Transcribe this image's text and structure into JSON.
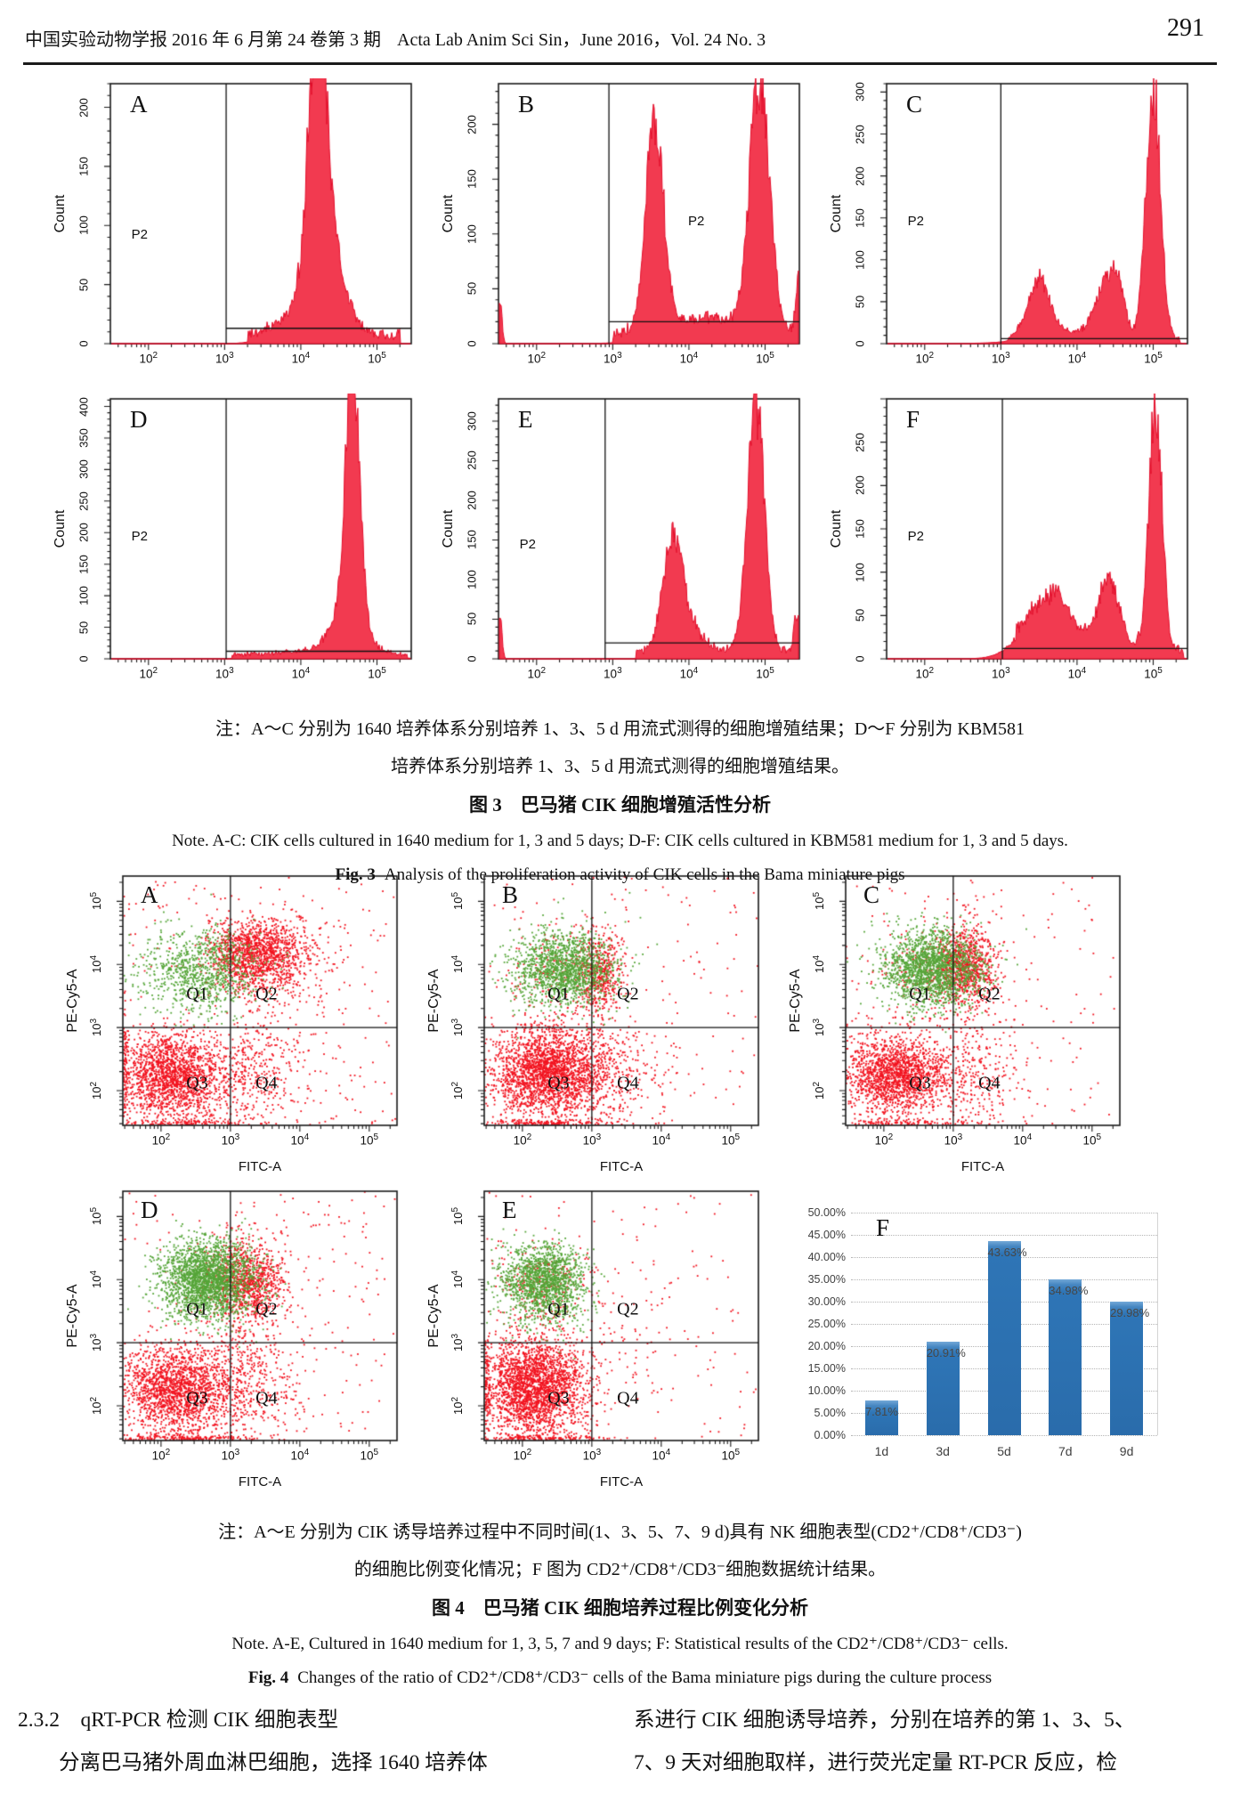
{
  "header": {
    "journal_cn": "中国实验动物学报 2016 年 6 月第 24 卷第 3 期",
    "journal_en": "Acta Lab Anim Sci Sin，June 2016，Vol. 24 No. 3",
    "page_number": "291"
  },
  "fig3": {
    "note_line1": "注：A～C 分别为 1640 培养体系分别培养 1、3、5 d 用流式测得的细胞增殖结果；D～F 分别为 KBM581",
    "note_line2": "培养体系分别培养 1、3、5 d 用流式测得的细胞增殖结果。",
    "title_cn": "图 3　巴马猪 CIK 细胞增殖活性分析",
    "note_en": "Note. A-C: CIK cells cultured in 1640 medium for 1, 3 and 5 days; D-F: CIK cells cultured in KBM581 medium for 1, 3 and 5 days.",
    "title_en_prefix": "Fig. 3",
    "title_en_rest": "Analysis of the proliferation activity of CIK cells in the Bama miniature pigs"
  },
  "fig4": {
    "note_line1": "注：A～E 分别为 CIK 诱导培养过程中不同时间(1、3、5、7、9 d)具有 NK 细胞表型(CD2⁺/CD8⁺/CD3⁻)",
    "note_line2": "的细胞比例变化情况；F 图为 CD2⁺/CD8⁺/CD3⁻细胞数据统计结果。",
    "title_cn": "图 4　巴马猪 CIK 细胞培养过程比例变化分析",
    "note_en": "Note. A-E, Cultured in 1640 medium for 1, 3, 5, 7 and 9 days; F: Statistical results of the CD2⁺/CD8⁺/CD3⁻ cells.",
    "title_en_prefix": "Fig. 4",
    "title_en_rest": "Changes of the ratio of CD2⁺/CD8⁺/CD3⁻ cells of the Bama miniature pigs during the culture process"
  },
  "body": {
    "section_heading": "2.3.2　qRT-PCR 检测 CIK 细胞表型",
    "left_line": "分离巴马猪外周血淋巴细胞，选择 1640 培养体",
    "right_line1": "系进行 CIK 细胞诱导培养，分别在培养的第 1、3、5、",
    "right_line2": "7、9 天对细胞取样，进行荧光定量 RT-PCR 反应，检"
  },
  "chart_data": [
    {
      "id": "fig3_histograms",
      "type": "histogram",
      "ylabel": "Count",
      "gate_label": "P2",
      "xlog_range": [
        1.5,
        5.45
      ],
      "xtick_exponents": [
        2,
        3,
        4,
        5
      ],
      "fill_color": "#f23a50",
      "line_color": "#e30b28",
      "panels": [
        {
          "label": "A",
          "ymax": 220,
          "yticks": [
            0,
            50,
            100,
            150,
            200
          ],
          "gate_x": 3.02,
          "gate_y": 13,
          "p2_pos": [
            0.07,
            0.55
          ],
          "peaks": [
            [
              4.22,
              0.11,
              200
            ],
            [
              4.32,
              0.2,
              70
            ],
            [
              4.15,
              0.35,
              25
            ]
          ],
          "floor": [
            3.3,
            5.3,
            8
          ]
        },
        {
          "label": "B",
          "ymax": 237,
          "yticks": [
            0,
            50,
            100,
            150,
            200
          ],
          "gate_x": 2.95,
          "gate_y": 20,
          "p2_pos": [
            0.63,
            0.5
          ],
          "peaks": [
            [
              3.55,
              0.115,
              188
            ],
            [
              4.93,
              0.13,
              228
            ],
            [
              4.2,
              0.5,
              15
            ],
            [
              1.52,
              0.025,
              40
            ],
            [
              5.45,
              0.04,
              60
            ]
          ],
          "floor": [
            3.0,
            5.45,
            10
          ]
        },
        {
          "label": "C",
          "ymax": 310,
          "yticks": [
            0,
            50,
            100,
            150,
            200,
            250,
            300
          ],
          "gate_x": 3.0,
          "gate_y": 6,
          "p2_pos": [
            0.07,
            0.5
          ],
          "peaks": [
            [
              3.5,
              0.14,
              68
            ],
            [
              4.38,
              0.13,
              62
            ],
            [
              4.55,
              0.08,
              45
            ],
            [
              5.0,
              0.095,
              300
            ],
            [
              4.0,
              0.55,
              10
            ]
          ],
          "floor": [
            3.1,
            5.35,
            5
          ]
        },
        {
          "label": "D",
          "ymax": 412,
          "yticks": [
            0,
            50,
            100,
            150,
            200,
            250,
            300,
            350,
            400
          ],
          "gate_x": 3.02,
          "gate_y": 12,
          "p2_pos": [
            0.07,
            0.5
          ],
          "peaks": [
            [
              4.68,
              0.09,
              400
            ],
            [
              4.62,
              0.2,
              70
            ],
            [
              4.4,
              0.5,
              8
            ]
          ],
          "floor": [
            3.1,
            5.4,
            7
          ]
        },
        {
          "label": "E",
          "ymax": 328,
          "yticks": [
            0,
            50,
            100,
            150,
            200,
            250,
            300
          ],
          "gate_x": 2.9,
          "gate_y": 20,
          "p2_pos": [
            0.07,
            0.53
          ],
          "peaks": [
            [
              3.78,
              0.12,
              126
            ],
            [
              3.95,
              0.2,
              35
            ],
            [
              4.88,
              0.11,
              315
            ],
            [
              1.52,
              0.025,
              55
            ],
            [
              5.42,
              0.04,
              55
            ]
          ],
          "floor": [
            3.3,
            5.4,
            11
          ]
        },
        {
          "label": "F",
          "ymax": 300,
          "yticks": [
            0,
            50,
            100,
            150,
            200,
            250
          ],
          "gate_x": 3.02,
          "gate_y": 12,
          "p2_pos": [
            0.07,
            0.5
          ],
          "peaks": [
            [
              3.55,
              0.28,
              48
            ],
            [
              3.75,
              0.1,
              20
            ],
            [
              4.42,
              0.13,
              70
            ],
            [
              5.03,
              0.085,
              288
            ],
            [
              4.1,
              0.5,
              15
            ]
          ],
          "floor": [
            3.2,
            5.4,
            10
          ]
        }
      ]
    },
    {
      "id": "fig4_scatter",
      "type": "scatter",
      "xlabel": "FITC-A",
      "ylabel": "PE-Cy5-A",
      "log_range": [
        1.45,
        5.4
      ],
      "tick_exponents": [
        2,
        3,
        4,
        5
      ],
      "quadrant_cross": [
        3.0,
        3.0
      ],
      "quadrant_labels": [
        "Q1",
        "Q2",
        "Q3",
        "Q4"
      ],
      "quadrant_label_pos": [
        [
          2.52,
          3.52
        ],
        [
          3.52,
          3.52
        ],
        [
          2.52,
          2.12
        ],
        [
          3.52,
          2.12
        ]
      ],
      "colors": {
        "red": "#f2131f",
        "green": "#55a538"
      },
      "panels": [
        {
          "label": "A",
          "clusters": [
            {
              "color": "red",
              "x": 3.35,
              "y": 4.15,
              "sx": 0.33,
              "sy": 0.27,
              "n": 1300
            },
            {
              "color": "red",
              "x": 3.85,
              "y": 3.95,
              "sx": 0.5,
              "sy": 0.5,
              "n": 220
            },
            {
              "color": "red",
              "x": 2.15,
              "y": 2.25,
              "sx": 0.36,
              "sy": 0.32,
              "n": 1700
            },
            {
              "color": "red",
              "x": 3.3,
              "y": 2.2,
              "sx": 0.45,
              "sy": 0.5,
              "n": 470
            },
            {
              "color": "red",
              "x": 1.48,
              "y": 2.3,
              "sx": 0.03,
              "sy": 0.4,
              "n": 150
            },
            {
              "color": "red",
              "x": 2.3,
              "y": 1.48,
              "sx": 0.55,
              "sy": 0.03,
              "n": 150
            },
            {
              "color": "red",
              "uniform": true,
              "n": 240
            },
            {
              "color": "green",
              "x": 2.55,
              "y": 3.9,
              "sx": 0.42,
              "sy": 0.33,
              "n": 900
            }
          ]
        },
        {
          "label": "B",
          "clusters": [
            {
              "color": "red",
              "x": 2.35,
              "y": 2.3,
              "sx": 0.4,
              "sy": 0.36,
              "n": 2300
            },
            {
              "color": "red",
              "x": 3.12,
              "y": 3.85,
              "sx": 0.16,
              "sy": 0.35,
              "n": 470
            },
            {
              "color": "red",
              "x": 3.25,
              "y": 2.3,
              "sx": 0.4,
              "sy": 0.45,
              "n": 330
            },
            {
              "color": "red",
              "x": 2.6,
              "y": 3.9,
              "sx": 0.4,
              "sy": 0.3,
              "n": 160
            },
            {
              "color": "red",
              "x": 2.3,
              "y": 1.48,
              "sx": 0.55,
              "sy": 0.03,
              "n": 200
            },
            {
              "color": "red",
              "uniform": true,
              "n": 180
            },
            {
              "color": "green",
              "x": 2.6,
              "y": 3.93,
              "sx": 0.36,
              "sy": 0.3,
              "n": 1500
            }
          ]
        },
        {
          "label": "C",
          "clusters": [
            {
              "color": "red",
              "x": 3.18,
              "y": 3.95,
              "sx": 0.22,
              "sy": 0.33,
              "n": 900
            },
            {
              "color": "red",
              "x": 2.15,
              "y": 2.25,
              "sx": 0.35,
              "sy": 0.3,
              "n": 1600
            },
            {
              "color": "red",
              "x": 3.1,
              "y": 2.3,
              "sx": 0.45,
              "sy": 0.5,
              "n": 430
            },
            {
              "color": "red",
              "x": 2.6,
              "y": 3.9,
              "sx": 0.4,
              "sy": 0.3,
              "n": 130
            },
            {
              "color": "red",
              "x": 2.3,
              "y": 1.48,
              "sx": 0.55,
              "sy": 0.03,
              "n": 150
            },
            {
              "color": "red",
              "uniform": true,
              "n": 180
            },
            {
              "color": "green",
              "x": 2.68,
              "y": 3.95,
              "sx": 0.35,
              "sy": 0.3,
              "n": 1750
            }
          ]
        },
        {
          "label": "D",
          "clusters": [
            {
              "color": "red",
              "x": 3.22,
              "y": 3.95,
              "sx": 0.28,
              "sy": 0.33,
              "n": 1050
            },
            {
              "color": "red",
              "x": 2.2,
              "y": 2.25,
              "sx": 0.4,
              "sy": 0.36,
              "n": 1750
            },
            {
              "color": "red",
              "x": 3.2,
              "y": 2.35,
              "sx": 0.42,
              "sy": 0.5,
              "n": 480
            },
            {
              "color": "red",
              "x": 2.3,
              "y": 1.48,
              "sx": 0.55,
              "sy": 0.03,
              "n": 250
            },
            {
              "color": "red",
              "uniform": true,
              "n": 230
            },
            {
              "color": "green",
              "x": 2.67,
              "y": 4.0,
              "sx": 0.34,
              "sy": 0.3,
              "n": 2250
            }
          ]
        },
        {
          "label": "E",
          "clusters": [
            {
              "color": "red",
              "x": 2.18,
              "y": 2.3,
              "sx": 0.36,
              "sy": 0.38,
              "n": 2400
            },
            {
              "color": "red",
              "x": 2.3,
              "y": 3.9,
              "sx": 0.35,
              "sy": 0.35,
              "n": 260
            },
            {
              "color": "red",
              "x": 3.4,
              "y": 3.7,
              "sx": 0.6,
              "sy": 0.55,
              "n": 55
            },
            {
              "color": "red",
              "x": 3.3,
              "y": 2.4,
              "sx": 0.5,
              "sy": 0.5,
              "n": 55
            },
            {
              "color": "red",
              "x": 1.48,
              "y": 2.3,
              "sx": 0.03,
              "sy": 0.4,
              "n": 150
            },
            {
              "color": "red",
              "x": 2.3,
              "y": 1.48,
              "sx": 0.55,
              "sy": 0.03,
              "n": 200
            },
            {
              "color": "red",
              "uniform": true,
              "n": 110
            },
            {
              "color": "green",
              "x": 2.32,
              "y": 3.95,
              "sx": 0.3,
              "sy": 0.3,
              "n": 1550
            }
          ]
        }
      ]
    },
    {
      "id": "fig4_bar",
      "type": "bar",
      "panel_label": "F",
      "categories": [
        "1d",
        "3d",
        "5d",
        "7d",
        "9d"
      ],
      "values": [
        7.81,
        20.91,
        43.63,
        34.98,
        29.98
      ],
      "value_labels": [
        "7.81%",
        "20.91%",
        "43.63%",
        "34.98%",
        "29.98%"
      ],
      "ytick_labels": [
        "0.00%",
        "5.00%",
        "10.00%",
        "15.00%",
        "20.00%",
        "25.00%",
        "30.00%",
        "35.00%",
        "40.00%",
        "45.00%",
        "50.00%"
      ],
      "ylim": [
        0,
        50
      ],
      "bar_color": "#2e75b6",
      "grid": true,
      "legend_position": "none"
    }
  ]
}
